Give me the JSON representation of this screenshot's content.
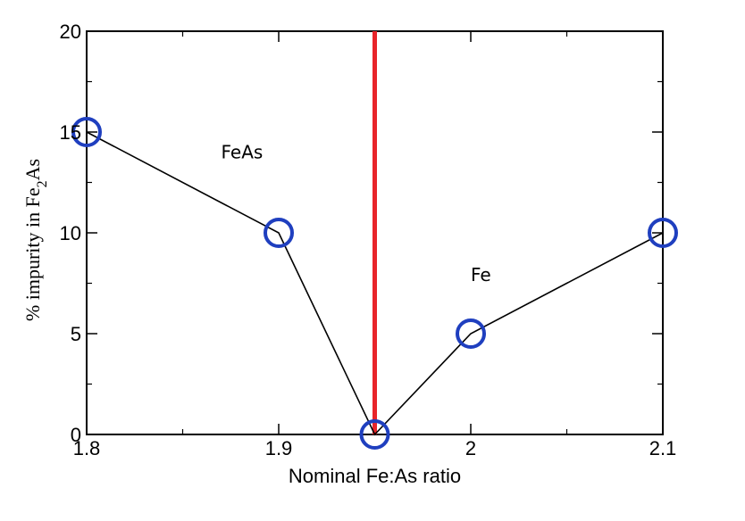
{
  "chart_data": {
    "type": "line",
    "title": "",
    "xlabel": "Nominal Fe:As ratio",
    "ylabel": {
      "prefix": "% impurity in Fe",
      "subscript": "2",
      "suffix": "As"
    },
    "xlim": [
      1.8,
      2.1
    ],
    "ylim": [
      0,
      20
    ],
    "x_ticks": [
      1.8,
      1.9,
      2,
      2.1
    ],
    "x_tick_labels": [
      "1.8",
      "1.9",
      "2",
      "2.1"
    ],
    "y_ticks": [
      0,
      5,
      10,
      15,
      20
    ],
    "y_tick_labels": [
      "0",
      "5",
      "10",
      "15",
      "20"
    ],
    "grid": false,
    "series": [
      {
        "x": [
          1.8,
          1.9,
          1.95,
          2.0,
          2.1
        ],
        "y": [
          15,
          10,
          0,
          5,
          10
        ],
        "line_color": "#000000",
        "marker": "circle",
        "marker_color": "#1f3fbf"
      }
    ],
    "vertical_line": {
      "x": 1.95,
      "color": "#e8242a"
    },
    "annotations": [
      {
        "text": "FeAs",
        "x": 1.87,
        "y": 13.7
      },
      {
        "text": "Fe",
        "x": 2.0,
        "y": 7.6
      }
    ]
  }
}
